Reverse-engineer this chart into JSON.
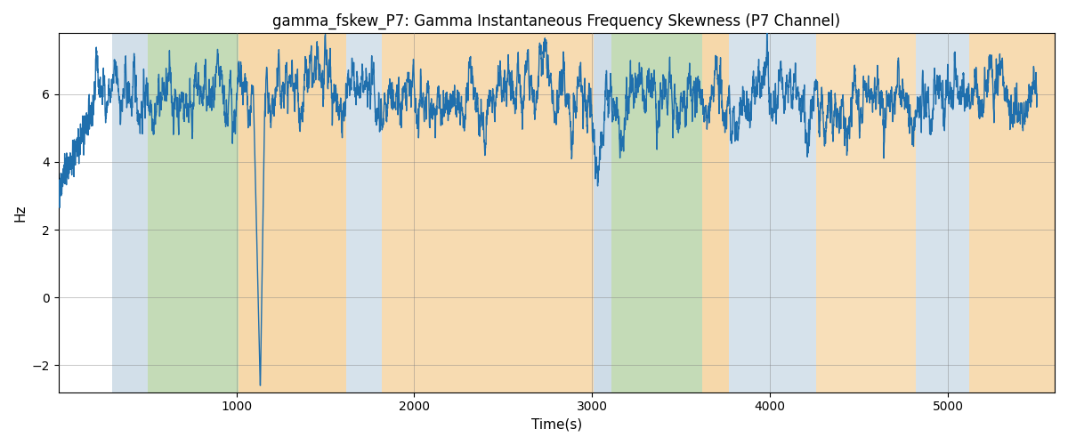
{
  "title": "gamma_fskew_P7: Gamma Instantaneous Frequency Skewness (P7 Channel)",
  "xlabel": "Time(s)",
  "ylabel": "Hz",
  "xlim": [
    0,
    5600
  ],
  "ylim": [
    -2.8,
    7.8
  ],
  "yticks": [
    -2,
    0,
    2,
    4,
    6
  ],
  "xticks": [
    1000,
    2000,
    3000,
    4000,
    5000
  ],
  "line_color": "#1f6fad",
  "line_width": 1.0,
  "colored_bands": [
    {
      "start": 300,
      "end": 500,
      "color": "#aec6d8",
      "alpha": 0.55
    },
    {
      "start": 500,
      "end": 1010,
      "color": "#8ab870",
      "alpha": 0.5
    },
    {
      "start": 1010,
      "end": 1620,
      "color": "#f0b865",
      "alpha": 0.55
    },
    {
      "start": 1620,
      "end": 1820,
      "color": "#aec6d8",
      "alpha": 0.5
    },
    {
      "start": 1820,
      "end": 3010,
      "color": "#f0b865",
      "alpha": 0.5
    },
    {
      "start": 3010,
      "end": 3110,
      "color": "#aec6d8",
      "alpha": 0.6
    },
    {
      "start": 3110,
      "end": 3620,
      "color": "#8ab870",
      "alpha": 0.5
    },
    {
      "start": 3620,
      "end": 3770,
      "color": "#f0b865",
      "alpha": 0.55
    },
    {
      "start": 3770,
      "end": 4260,
      "color": "#aec6d8",
      "alpha": 0.5
    },
    {
      "start": 4260,
      "end": 4820,
      "color": "#f0b865",
      "alpha": 0.45
    },
    {
      "start": 4820,
      "end": 5120,
      "color": "#aec6d8",
      "alpha": 0.5
    },
    {
      "start": 5120,
      "end": 5600,
      "color": "#f0b865",
      "alpha": 0.5
    }
  ],
  "seed": 42,
  "n_points": 5500,
  "time_end": 5500,
  "signal_base": 5.9,
  "ar_coeff": 0.92,
  "noise_scale": 0.55
}
